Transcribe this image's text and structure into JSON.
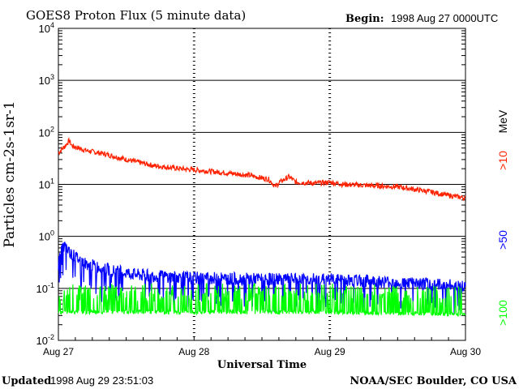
{
  "chart_data": {
    "type": "line",
    "title": "GOES8 Proton Flux (5 minute data)",
    "begin_label": "Begin:",
    "begin_value": "1998 Aug 27 0000UTC",
    "ylabel": "Particles cm-2s-1sr-1",
    "xlabel": "Universal Time",
    "y_scale": "log",
    "ylim": [
      0.01,
      10000
    ],
    "y_ticks": [
      {
        "base": "10",
        "exp": "4",
        "value": 10000
      },
      {
        "base": "10",
        "exp": "3",
        "value": 1000
      },
      {
        "base": "10",
        "exp": "2",
        "value": 100
      },
      {
        "base": "10",
        "exp": "1",
        "value": 10
      },
      {
        "base": "10",
        "exp": "0",
        "value": 1
      },
      {
        "base": "10",
        "exp": "-1",
        "value": 0.1
      },
      {
        "base": "10",
        "exp": "-2",
        "value": 0.01
      }
    ],
    "x_ticks": [
      "Aug 27",
      "Aug 28",
      "Aug 29",
      "Aug 30"
    ],
    "xlim_days": [
      0,
      3
    ],
    "grid": "horizontal at decades, dashed vertical at day boundaries",
    "unit_label": "MeV",
    "series": [
      {
        "name": ">10",
        "color": "#ff2200",
        "points": [
          [
            0.0,
            40
          ],
          [
            0.05,
            55
          ],
          [
            0.08,
            70
          ],
          [
            0.1,
            55
          ],
          [
            0.2,
            45
          ],
          [
            0.35,
            38
          ],
          [
            0.5,
            30
          ],
          [
            0.7,
            23
          ],
          [
            0.9,
            20
          ],
          [
            1.0,
            19
          ],
          [
            1.2,
            17
          ],
          [
            1.4,
            15
          ],
          [
            1.55,
            12.5
          ],
          [
            1.6,
            9
          ],
          [
            1.63,
            11
          ],
          [
            1.7,
            14
          ],
          [
            1.75,
            11
          ],
          [
            1.9,
            10.5
          ],
          [
            2.0,
            11
          ],
          [
            2.1,
            10
          ],
          [
            2.3,
            9.5
          ],
          [
            2.5,
            9
          ],
          [
            2.7,
            7.5
          ],
          [
            2.9,
            6
          ],
          [
            3.0,
            5.5
          ]
        ]
      },
      {
        "name": ">50",
        "color": "#0000ff",
        "points": [
          [
            0.0,
            0.5
          ],
          [
            0.05,
            0.65
          ],
          [
            0.1,
            0.45
          ],
          [
            0.2,
            0.3
          ],
          [
            0.4,
            0.22
          ],
          [
            0.6,
            0.18
          ],
          [
            1.0,
            0.16
          ],
          [
            1.5,
            0.15
          ],
          [
            2.0,
            0.15
          ],
          [
            2.5,
            0.13
          ],
          [
            3.0,
            0.11
          ]
        ]
      },
      {
        "name": ">100",
        "color": "#00ff00",
        "points": [
          [
            0.0,
            0.035
          ],
          [
            0.5,
            0.035
          ],
          [
            1.0,
            0.035
          ],
          [
            1.5,
            0.035
          ],
          [
            2.0,
            0.035
          ],
          [
            2.5,
            0.033
          ],
          [
            3.0,
            0.032
          ]
        ]
      }
    ]
  },
  "footer": {
    "updated_label": "Updated",
    "updated_value": "1998 Aug 29 23:51:03",
    "credit": "NOAA/SEC Boulder, CO USA"
  }
}
